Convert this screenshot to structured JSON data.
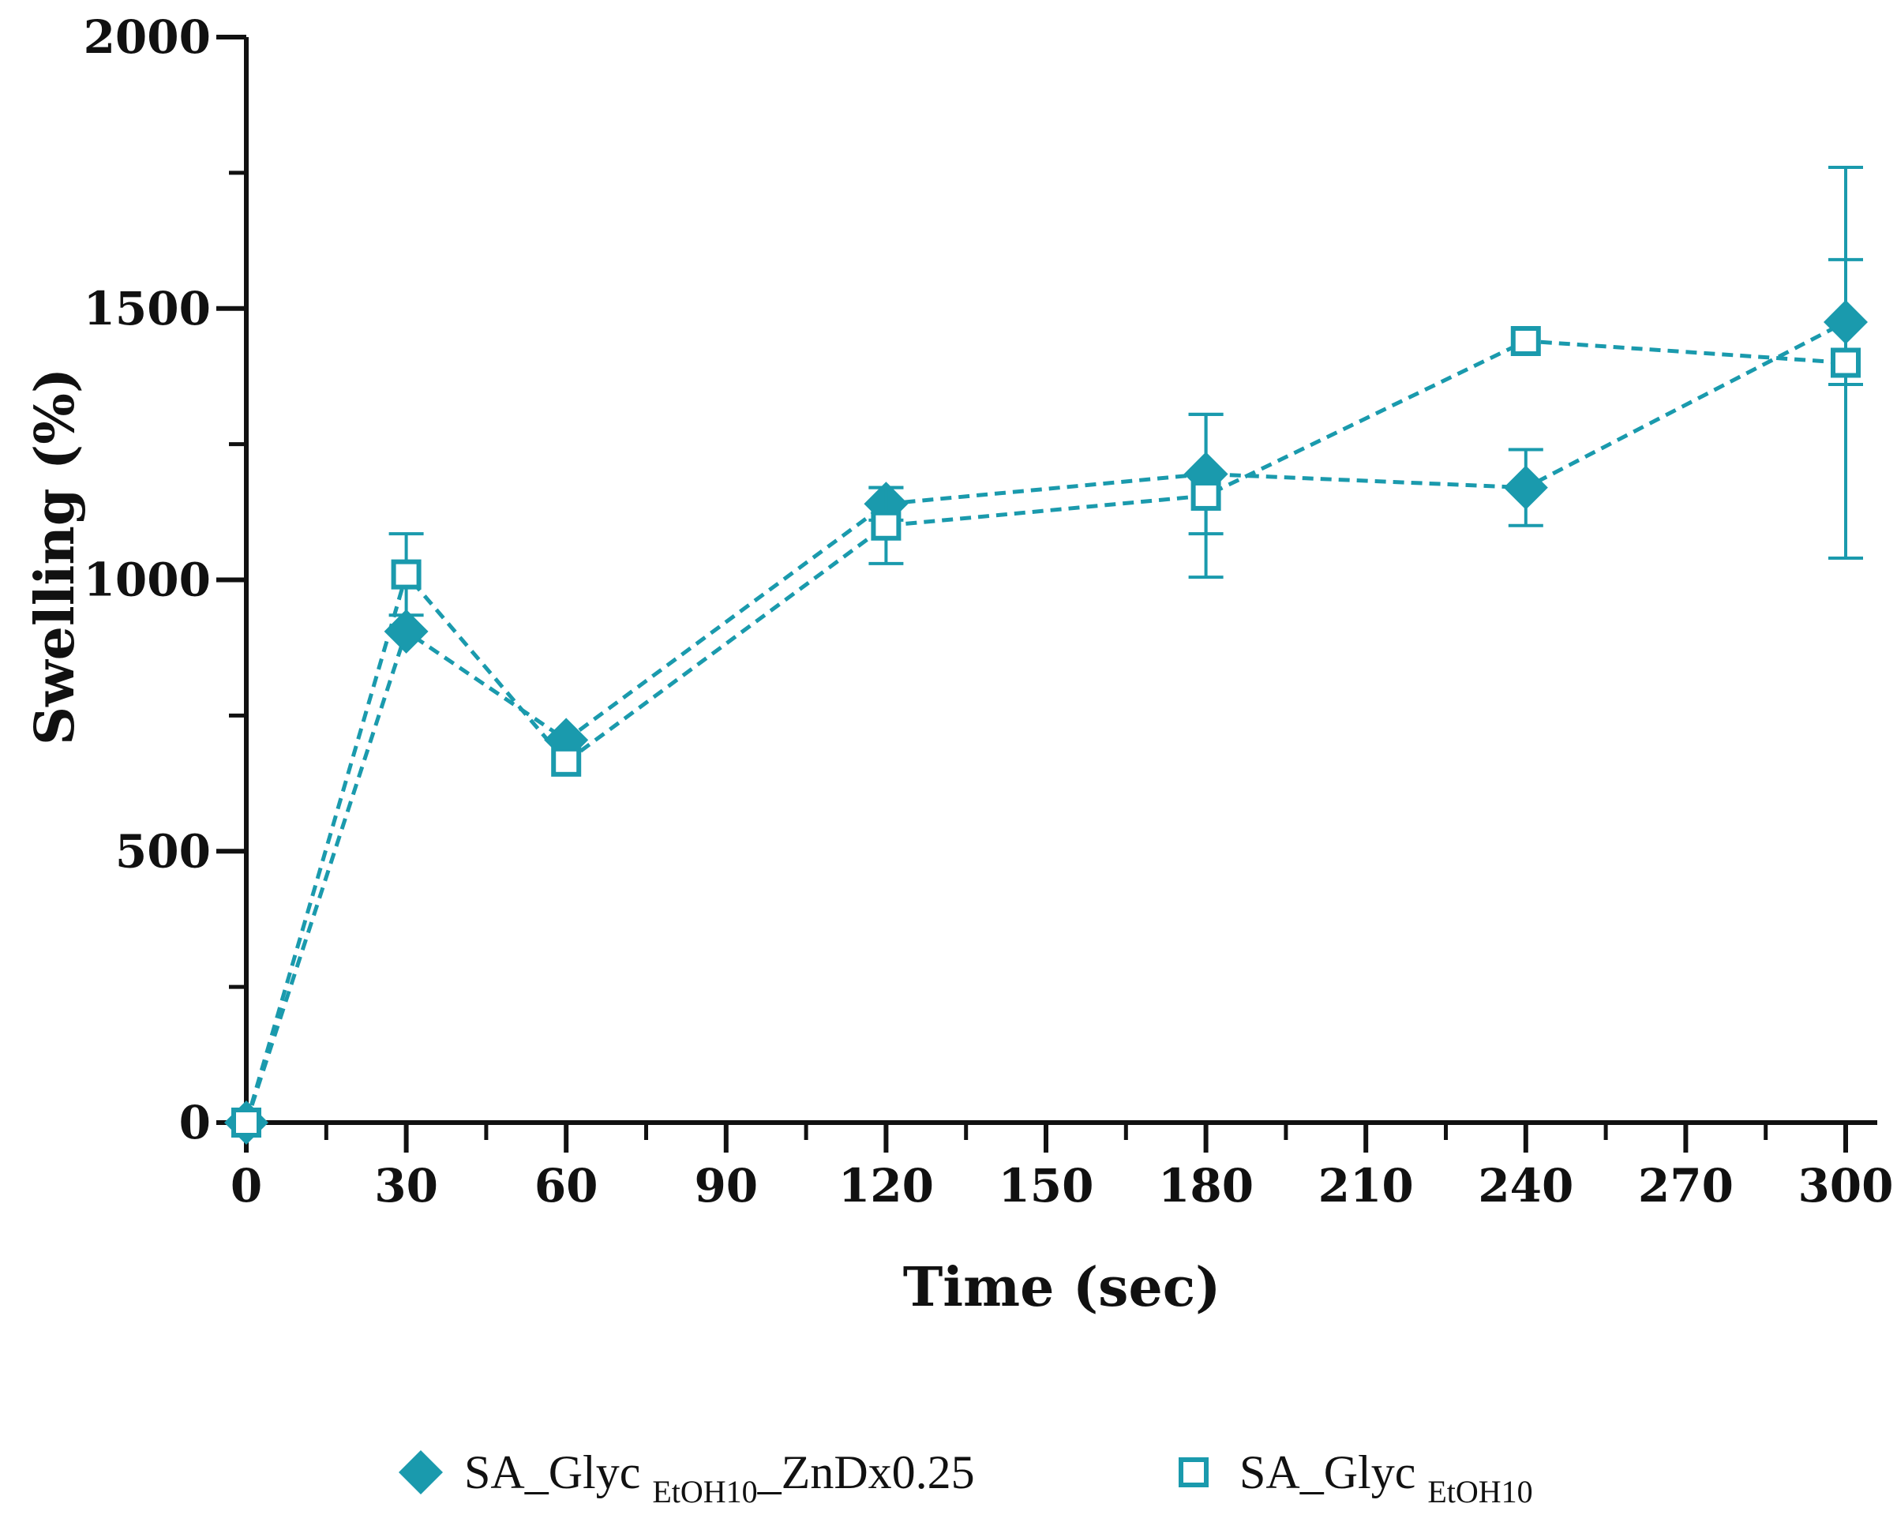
{
  "chart_data": {
    "type": "line",
    "title": "",
    "xlabel": "Time (sec)",
    "ylabel": "Swelling (%)",
    "xlim": [
      0,
      300
    ],
    "ylim": [
      0,
      2000
    ],
    "x_ticks": [
      0,
      30,
      60,
      90,
      120,
      150,
      180,
      210,
      240,
      270,
      300
    ],
    "y_ticks": [
      0,
      500,
      1000,
      1500,
      2000
    ],
    "grid": false,
    "legend_position": "bottom",
    "color": "#1a9aad",
    "line_style": "dashed",
    "series": [
      {
        "name": "SA_Glyc EtOH10_ZnDx0.25",
        "legend": {
          "main": "SA_Glyc ",
          "sub": "EtOH10",
          "rest": "_ZnDx0.25"
        },
        "marker": "filled-diamond",
        "x": [
          0,
          30,
          60,
          120,
          180,
          240,
          300
        ],
        "values": [
          0,
          905,
          705,
          1140,
          1195,
          1170,
          1475
        ],
        "error": [
          0,
          0,
          0,
          30,
          110,
          70,
          115
        ]
      },
      {
        "name": "SA_Glyc EtOH10",
        "legend": {
          "main": "SA_Glyc ",
          "sub": "EtOH10",
          "rest": ""
        },
        "marker": "open-square",
        "x": [
          0,
          30,
          60,
          120,
          180,
          240,
          300
        ],
        "values": [
          0,
          1010,
          665,
          1100,
          1155,
          1440,
          1400
        ],
        "error": [
          0,
          75,
          0,
          70,
          150,
          0,
          360
        ]
      }
    ]
  }
}
